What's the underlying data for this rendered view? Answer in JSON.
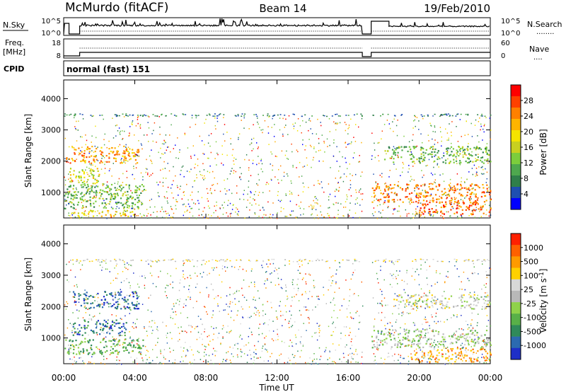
{
  "header": {
    "station": "McMurdo (fitACF)",
    "beam": "Beam 14",
    "date": "19/Feb/2010"
  },
  "top_panels": {
    "nsky": {
      "label": "N.Sky",
      "ticks": [
        "10^5",
        "10^0"
      ],
      "right_ticks": [
        "10^5",
        "10^0"
      ],
      "right_label": "N.Search",
      "right_legend": "........"
    },
    "freq": {
      "label_line1": "Freq.",
      "label_line2": "[MHz]",
      "ticks": [
        "18",
        "8"
      ],
      "right_ticks": [
        "60",
        "0"
      ],
      "right_label": "Nave",
      "right_legend": "...."
    },
    "cpid": {
      "label": "CPID",
      "value": "normal (fast) 151"
    }
  },
  "chart_data": [
    {
      "type": "heatmap",
      "title": "Power",
      "ylabel": "Slant Range [km]",
      "xlabel": "Time UT",
      "x_ticks": [
        "00:00",
        "04:00",
        "08:00",
        "12:00",
        "16:00",
        "20:00",
        "00:00"
      ],
      "xlim_hours": [
        0,
        24
      ],
      "ylim_km": [
        180,
        4600
      ],
      "y_ticks": [
        1000,
        2000,
        3000,
        4000
      ],
      "data_gap_hours": [
        16.8,
        17.3
      ],
      "colorbar": {
        "label": "Power [dB]",
        "ticks": [
          "4",
          "8",
          "12",
          "16",
          "20",
          "24",
          "28"
        ],
        "colors": [
          "#0000ff",
          "#1e4fb0",
          "#2f7f4a",
          "#4ea84e",
          "#7ccd3c",
          "#c8d020",
          "#f4e400",
          "#ffb400",
          "#ff8000",
          "#ff4000",
          "#ff0000"
        ]
      },
      "regions": [
        {
          "t0": 0.1,
          "t1": 4.2,
          "r0": 1950,
          "r1": 2500,
          "level": 0.75
        },
        {
          "t0": 0.3,
          "t1": 2.0,
          "r0": 1300,
          "r1": 1800,
          "level": 0.55
        },
        {
          "t0": 0.0,
          "t1": 4.5,
          "r0": 500,
          "r1": 1300,
          "level": 0.35
        },
        {
          "t0": 0.5,
          "t1": 4.0,
          "r0": 250,
          "r1": 450,
          "level": 0.6
        },
        {
          "t0": 17.3,
          "t1": 24.0,
          "r0": 700,
          "r1": 1300,
          "level": 0.8
        },
        {
          "t0": 19.8,
          "t1": 24.0,
          "r0": 300,
          "r1": 700,
          "level": 0.85
        },
        {
          "t0": 18.0,
          "t1": 24.0,
          "r0": 1950,
          "r1": 2500,
          "level": 0.35
        }
      ]
    },
    {
      "type": "heatmap",
      "title": "Velocity",
      "ylabel": "Slant Range [km]",
      "xlabel": "Time UT",
      "x_ticks": [
        "00:00",
        "04:00",
        "08:00",
        "12:00",
        "16:00",
        "20:00",
        "00:00"
      ],
      "xlim_hours": [
        0,
        24
      ],
      "ylim_km": [
        180,
        4600
      ],
      "y_ticks": [
        1000,
        2000,
        3000,
        4000
      ],
      "data_gap_hours": [
        16.8,
        17.3
      ],
      "colorbar": {
        "label": "Velocity [m s^-1]",
        "ticks": [
          "1000",
          "500",
          "100",
          "25",
          "-25",
          "-100",
          "-500",
          "-1000"
        ],
        "colors": [
          "#1e2fc8",
          "#2b6ab0",
          "#2f8a5a",
          "#58b048",
          "#8fd24a",
          "#b8b8b8",
          "#d8d8d8",
          "#ffd000",
          "#ff9a00",
          "#ff6000",
          "#ff2000"
        ]
      },
      "regions": [
        {
          "t0": 0.5,
          "t1": 4.2,
          "r0": 1950,
          "r1": 2500,
          "level": 0.1
        },
        {
          "t0": 0.5,
          "t1": 3.5,
          "r0": 1100,
          "r1": 1600,
          "level": 0.15
        },
        {
          "t0": 0.0,
          "t1": 4.5,
          "r0": 500,
          "r1": 1000,
          "level": 0.3
        },
        {
          "t0": 17.3,
          "t1": 24.0,
          "r0": 700,
          "r1": 1300,
          "level": 0.45
        },
        {
          "t0": 19.5,
          "t1": 24.0,
          "r0": 250,
          "r1": 700,
          "level": 0.75
        },
        {
          "t0": 18.5,
          "t1": 24.0,
          "r0": 1950,
          "r1": 2400,
          "level": 0.55
        }
      ]
    }
  ]
}
